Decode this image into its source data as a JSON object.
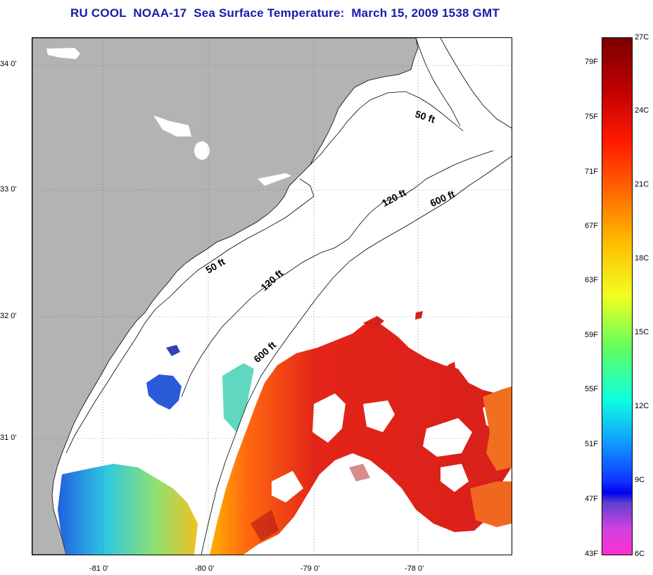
{
  "title": "RU COOL  NOAA-17  Sea Surface Temperature:  March 15, 2009 1538 GMT",
  "map": {
    "latitude_labels": [
      "34 0'",
      "33 0'",
      "32 0'",
      "31 0'"
    ],
    "longitude_labels": [
      "-81 0'",
      "-80 0'",
      "-79 0'",
      "-78 0'"
    ],
    "contour_labels": [
      "50 ft",
      "120 ft",
      "600 ft",
      "50 ft",
      "120 ft",
      "600 ft"
    ],
    "colors": {
      "land": "#b3b3b3",
      "ocean_missing": "#ffffff",
      "warm": "#e01818",
      "cool": "#30d0d0"
    }
  },
  "colorbar": {
    "fahrenheit_ticks": [
      "79F",
      "75F",
      "71F",
      "67F",
      "63F",
      "59F",
      "55F",
      "51F",
      "47F",
      "43F"
    ],
    "celsius_ticks": [
      "27C",
      "24C",
      "21C",
      "18C",
      "15C",
      "12C",
      "9C",
      "6C"
    ]
  }
}
